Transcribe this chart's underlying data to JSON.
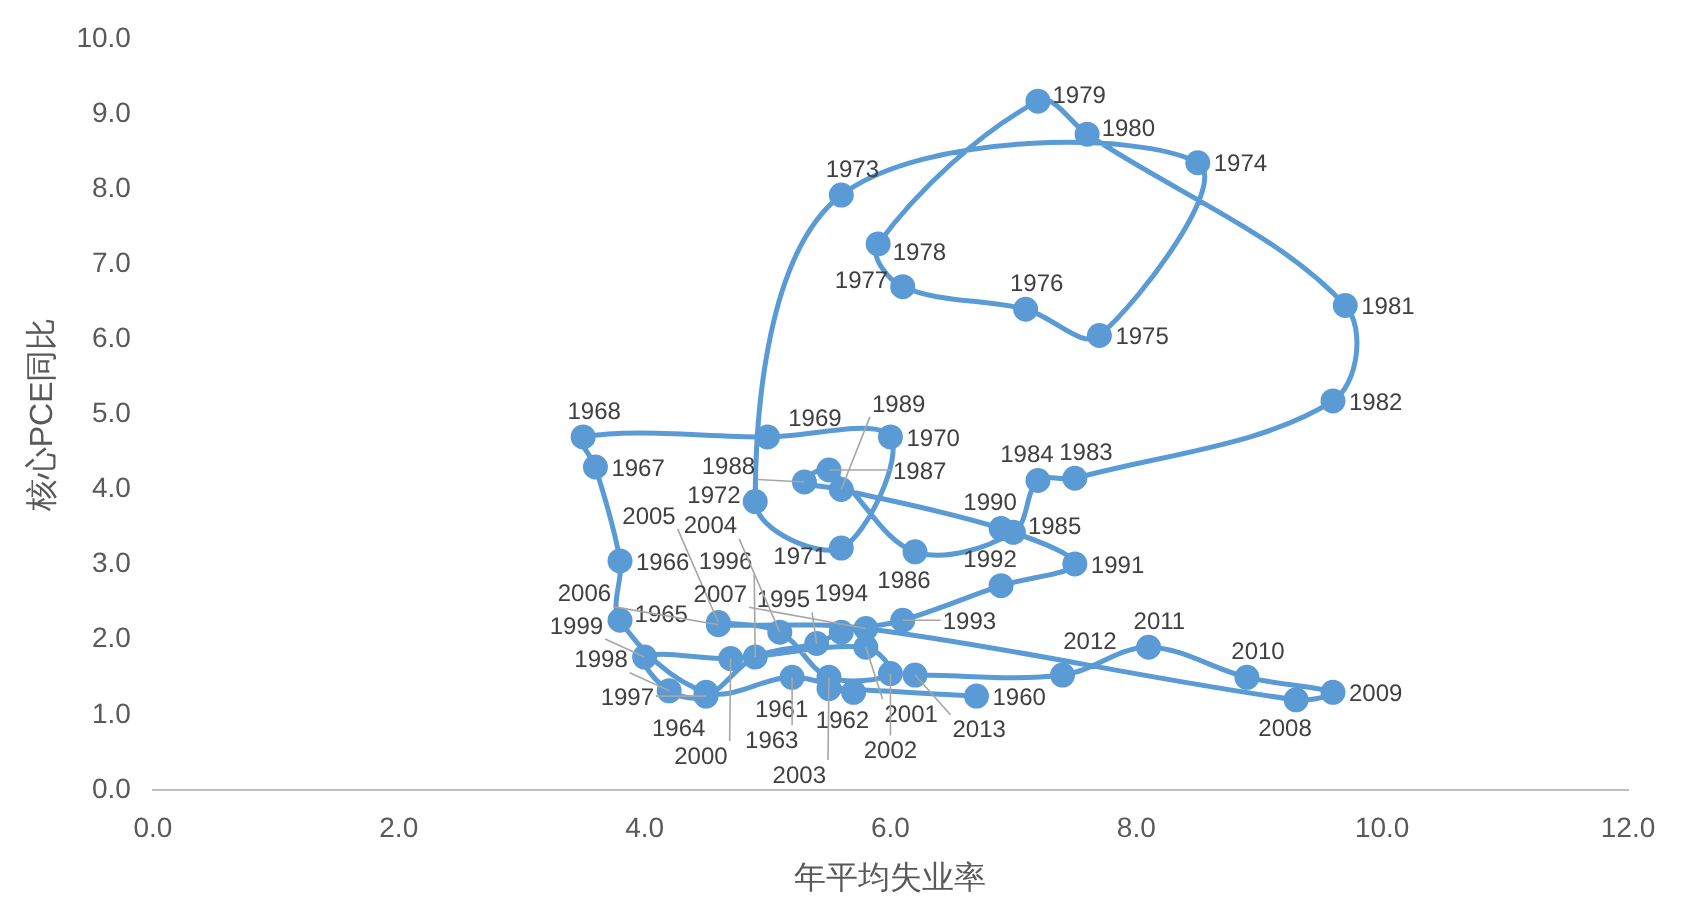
{
  "chart_data": {
    "type": "line",
    "xlabel": "年平均失业率",
    "ylabel": "核心PCE同比",
    "x": [
      6.7,
      5.5,
      5.7,
      5.2,
      4.5,
      3.8,
      3.8,
      3.6,
      3.5,
      5.0,
      6.0,
      5.6,
      4.9,
      5.6,
      8.5,
      7.7,
      7.1,
      6.1,
      5.9,
      7.2,
      7.6,
      9.7,
      9.6,
      7.5,
      7.2,
      7.0,
      6.2,
      5.5,
      5.3,
      5.6,
      6.9,
      7.5,
      6.9,
      6.1,
      5.6,
      5.4,
      4.9,
      4.5,
      4.2,
      4.0,
      4.7,
      5.8,
      6.0,
      5.5,
      5.1,
      4.6,
      4.6,
      5.8,
      9.3,
      9.6,
      8.9,
      8.1,
      7.4,
      6.2
    ],
    "series": [
      {
        "color": "#5b9bd5",
        "values": [
          1.25,
          1.35,
          1.3,
          1.5,
          1.3,
          2.26,
          3.05,
          4.3,
          4.7,
          4.7,
          4.7,
          3.22,
          3.84,
          7.92,
          8.35,
          6.05,
          6.4,
          6.7,
          7.27,
          9.17,
          8.73,
          6.45,
          5.18,
          4.15,
          4.12,
          3.43,
          3.17,
          4.26,
          4.1,
          4.0,
          3.48,
          3.01,
          2.72,
          2.26,
          2.1,
          1.95,
          1.77,
          1.25,
          1.32,
          1.77,
          1.75,
          1.9,
          1.55,
          1.5,
          2.1,
          2.23,
          2.2,
          2.15,
          1.2,
          1.3,
          1.5,
          1.9,
          1.53,
          1.53
        ]
      }
    ],
    "annotations": [
      {
        "text": "1960",
        "x": 6.7,
        "y": 1.25
      },
      {
        "text": "1961",
        "x": 5.5,
        "y": 1.35
      },
      {
        "text": "1962",
        "x": 5.7,
        "y": 1.3
      },
      {
        "text": "1963",
        "x": 5.2,
        "y": 1.5
      },
      {
        "text": "1964",
        "x": 4.5,
        "y": 1.3
      },
      {
        "text": "1965",
        "x": 3.8,
        "y": 2.26
      },
      {
        "text": "1966",
        "x": 3.8,
        "y": 3.05
      },
      {
        "text": "1967",
        "x": 3.6,
        "y": 4.3
      },
      {
        "text": "1968",
        "x": 3.5,
        "y": 4.7
      },
      {
        "text": "1969",
        "x": 5.0,
        "y": 4.7
      },
      {
        "text": "1970",
        "x": 6.0,
        "y": 4.7
      },
      {
        "text": "1971",
        "x": 5.6,
        "y": 3.22
      },
      {
        "text": "1972",
        "x": 4.9,
        "y": 3.84
      },
      {
        "text": "1973",
        "x": 5.6,
        "y": 7.92
      },
      {
        "text": "1974",
        "x": 8.5,
        "y": 8.35
      },
      {
        "text": "1975",
        "x": 7.7,
        "y": 6.05
      },
      {
        "text": "1976",
        "x": 7.1,
        "y": 6.4
      },
      {
        "text": "1977",
        "x": 6.1,
        "y": 6.7
      },
      {
        "text": "1978",
        "x": 5.9,
        "y": 7.27
      },
      {
        "text": "1979",
        "x": 7.2,
        "y": 9.17
      },
      {
        "text": "1980",
        "x": 7.6,
        "y": 8.73
      },
      {
        "text": "1981",
        "x": 9.7,
        "y": 6.45
      },
      {
        "text": "1982",
        "x": 9.6,
        "y": 5.18
      },
      {
        "text": "1983",
        "x": 7.5,
        "y": 4.15
      },
      {
        "text": "1984",
        "x": 7.2,
        "y": 4.12
      },
      {
        "text": "1985",
        "x": 7.0,
        "y": 3.43
      },
      {
        "text": "1986",
        "x": 6.2,
        "y": 3.17
      },
      {
        "text": "1987",
        "x": 5.5,
        "y": 4.26
      },
      {
        "text": "1988",
        "x": 5.3,
        "y": 4.1
      },
      {
        "text": "1989",
        "x": 5.6,
        "y": 4.0
      },
      {
        "text": "1990",
        "x": 6.9,
        "y": 3.48
      },
      {
        "text": "1991",
        "x": 7.5,
        "y": 3.01
      },
      {
        "text": "1992",
        "x": 6.9,
        "y": 2.72
      },
      {
        "text": "1993",
        "x": 6.1,
        "y": 2.26
      },
      {
        "text": "1994",
        "x": 5.6,
        "y": 2.1
      },
      {
        "text": "1995",
        "x": 5.4,
        "y": 1.95
      },
      {
        "text": "1996",
        "x": 4.9,
        "y": 1.77
      },
      {
        "text": "1997",
        "x": 4.5,
        "y": 1.25
      },
      {
        "text": "1998",
        "x": 4.2,
        "y": 1.32
      },
      {
        "text": "1999",
        "x": 4.0,
        "y": 1.77
      },
      {
        "text": "2000",
        "x": 4.7,
        "y": 1.75
      },
      {
        "text": "2001",
        "x": 5.8,
        "y": 1.9
      },
      {
        "text": "2002",
        "x": 6.0,
        "y": 1.55
      },
      {
        "text": "2003",
        "x": 5.5,
        "y": 1.5
      },
      {
        "text": "2004",
        "x": 5.1,
        "y": 2.1
      },
      {
        "text": "2005",
        "x": 4.6,
        "y": 2.23
      },
      {
        "text": "2006",
        "x": 4.6,
        "y": 2.2
      },
      {
        "text": "2007",
        "x": 5.8,
        "y": 2.15
      },
      {
        "text": "2008",
        "x": 9.3,
        "y": 1.2
      },
      {
        "text": "2009",
        "x": 9.6,
        "y": 1.3
      },
      {
        "text": "2010",
        "x": 8.9,
        "y": 1.5
      },
      {
        "text": "2011",
        "x": 8.1,
        "y": 1.9
      },
      {
        "text": "2012",
        "x": 7.4,
        "y": 1.53
      },
      {
        "text": "2013",
        "x": 6.2,
        "y": 1.53
      }
    ],
    "xlim": [
      0,
      12
    ],
    "xticks": [
      {
        "value": 0,
        "label": "0.0"
      },
      {
        "value": 2,
        "label": "2.0"
      },
      {
        "value": 4,
        "label": "4.0"
      },
      {
        "value": 6,
        "label": "6.0"
      },
      {
        "value": 8,
        "label": "8.0"
      },
      {
        "value": 10,
        "label": "10.0"
      },
      {
        "value": 12,
        "label": "12.0"
      }
    ],
    "ylim": [
      0,
      10
    ],
    "yticks": [
      {
        "value": 0,
        "label": "0.0"
      },
      {
        "value": 1,
        "label": "1.0"
      },
      {
        "value": 2,
        "label": "2.0"
      },
      {
        "value": 3,
        "label": "3.0"
      },
      {
        "value": 4,
        "label": "4.0"
      },
      {
        "value": 5,
        "label": "5.0"
      },
      {
        "value": 6,
        "label": "6.0"
      },
      {
        "value": 7,
        "label": "7.0"
      },
      {
        "value": 8,
        "label": "8.0"
      },
      {
        "value": 9,
        "label": "9.0"
      },
      {
        "value": 10,
        "label": "10.0"
      }
    ],
    "grid": false,
    "legend": false,
    "marker": "circle",
    "line_style": "solid"
  }
}
